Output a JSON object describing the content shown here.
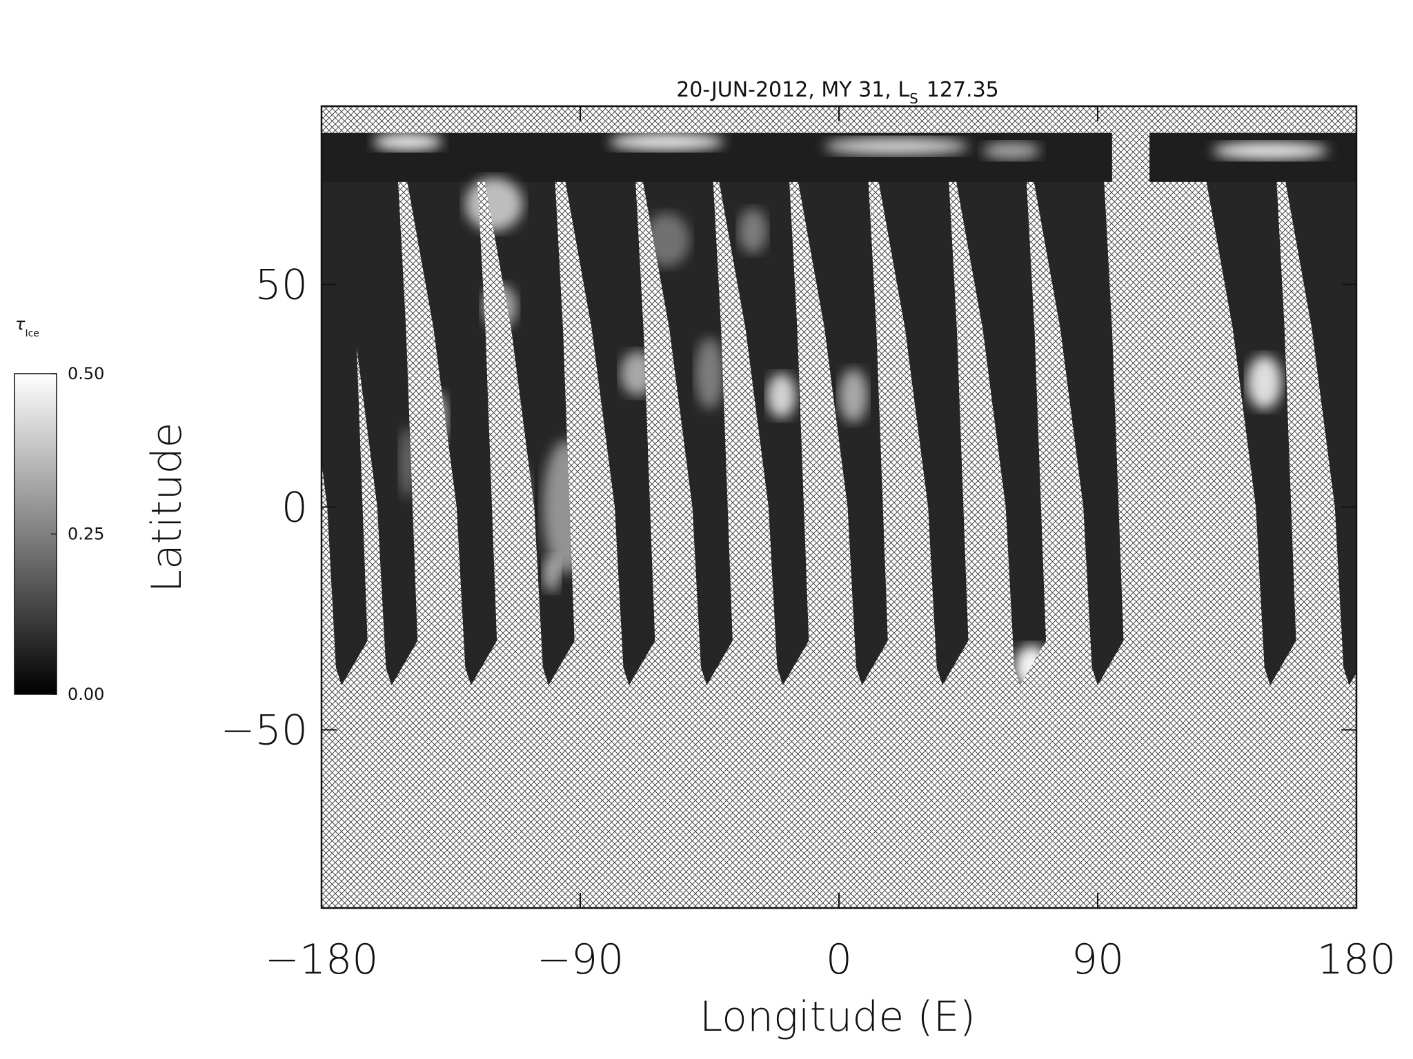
{
  "chart_data": {
    "type": "map",
    "title": {
      "text": "20-JUN-2012, MY 31,  L",
      "subscript": "S",
      "tail": "127.35"
    },
    "x_label": "Longitude (E)",
    "y_label": "Latitude",
    "xlim": [
      -180,
      180
    ],
    "xticks": [
      {
        "value": -180,
        "label": "−180"
      },
      {
        "value": -90,
        "label": "−90"
      },
      0,
      90,
      180
    ],
    "ylim": [
      -90,
      90
    ],
    "yticks": [
      {
        "value": -50,
        "label": "−50"
      },
      0,
      50
    ],
    "colorbar": {
      "label": {
        "symbol": "τ",
        "subscript": "Ice"
      },
      "lim": [
        0,
        0.5
      ],
      "ticks": [
        {
          "value": 0,
          "label": "0.00"
        },
        {
          "value": 0.25,
          "label": "0.25"
        },
        {
          "value": 0.5,
          "label": "0.50"
        }
      ],
      "colors": [
        "#000000",
        "#ffffff"
      ]
    }
  }
}
